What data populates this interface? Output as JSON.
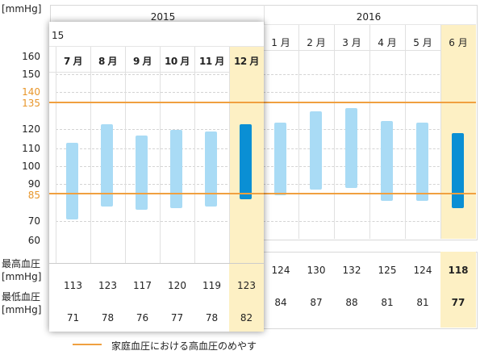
{
  "y_unit": "[mmHg]",
  "row_labels": {
    "high_title": "最高血圧",
    "high_unit": "[mmHg]",
    "low_title": "最低血圧",
    "low_unit": "[mmHg]"
  },
  "colors": {
    "reference": "#f0a040",
    "bar": "#a9dbf5",
    "bar_selected": "#0a8fd4",
    "highlight": "#fdf0c4"
  },
  "legend": {
    "label": "家庭血圧における高血圧のめやす"
  },
  "chart_data": {
    "type": "bar",
    "yticks": [
      {
        "label": "160",
        "v": 160
      },
      {
        "label": "150",
        "v": 150
      },
      {
        "label": "140",
        "v": 140,
        "orange": true
      },
      {
        "label": "135",
        "v": 135,
        "orange": true
      },
      {
        "label": "120",
        "v": 120
      },
      {
        "label": "110",
        "v": 110
      },
      {
        "label": "100",
        "v": 100
      },
      {
        "label": "90",
        "v": 90
      },
      {
        "label": "85",
        "v": 85,
        "orange": true
      },
      {
        "label": "70",
        "v": 70
      },
      {
        "label": "60",
        "v": 60
      }
    ],
    "reference_lines": [
      135,
      85
    ],
    "back": {
      "year_left": "2015",
      "year_right": "2016",
      "months": [
        {
          "label": "1 月",
          "high": "124",
          "low": "84",
          "hi": 124,
          "lo": 84
        },
        {
          "label": "2 月",
          "high": "130",
          "low": "87",
          "hi": 130,
          "lo": 87
        },
        {
          "label": "3 月",
          "high": "132",
          "low": "88",
          "hi": 132,
          "lo": 88
        },
        {
          "label": "4 月",
          "high": "125",
          "low": "81",
          "hi": 125,
          "lo": 81
        },
        {
          "label": "5 月",
          "high": "124",
          "low": "81",
          "hi": 124,
          "lo": 81
        },
        {
          "label": "6 月",
          "high": "118",
          "low": "77",
          "hi": 118,
          "lo": 77,
          "selected": true
        }
      ]
    },
    "front": {
      "year_fragment": "15",
      "months": [
        {
          "label": "7 月",
          "high": "113",
          "low": "71",
          "hi": 113,
          "lo": 71
        },
        {
          "label": "8 月",
          "high": "123",
          "low": "78",
          "hi": 123,
          "lo": 78
        },
        {
          "label": "9 月",
          "high": "117",
          "low": "76",
          "hi": 117,
          "lo": 76
        },
        {
          "label": "10 月",
          "high": "120",
          "low": "77",
          "hi": 120,
          "lo": 77
        },
        {
          "label": "11 月",
          "high": "119",
          "low": "78",
          "hi": 119,
          "lo": 78
        },
        {
          "label": "12 月",
          "high": "123",
          "low": "82",
          "hi": 123,
          "lo": 82,
          "selected": true
        }
      ]
    }
  }
}
